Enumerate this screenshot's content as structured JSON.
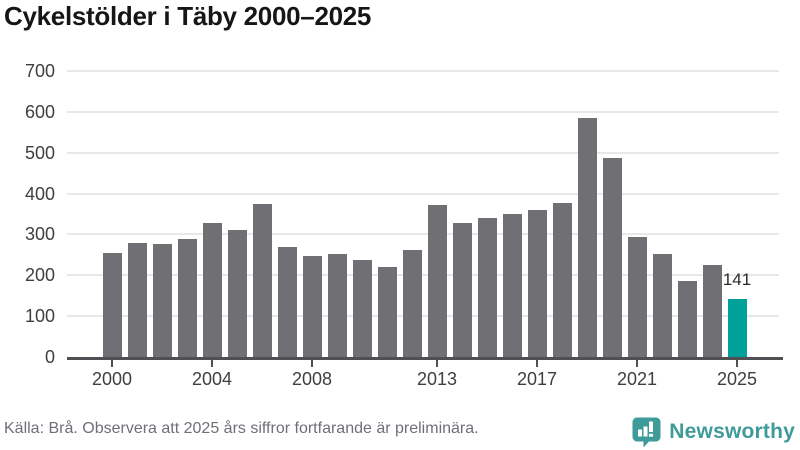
{
  "chart_data": {
    "type": "bar",
    "title": "Cykelstölder i Täby 2000–2025",
    "categories": [
      2000,
      2001,
      2002,
      2003,
      2004,
      2005,
      2006,
      2007,
      2008,
      2009,
      2010,
      2011,
      2012,
      2013,
      2014,
      2015,
      2016,
      2017,
      2018,
      2019,
      2020,
      2021,
      2022,
      2023,
      2024,
      2025
    ],
    "values": [
      254,
      278,
      276,
      290,
      329,
      310,
      374,
      270,
      248,
      252,
      238,
      220,
      262,
      372,
      328,
      341,
      349,
      361,
      378,
      586,
      487,
      294,
      252,
      186,
      224,
      141
    ],
    "xlabel": "",
    "ylabel": "",
    "ylim": [
      0,
      700
    ],
    "yticks": [
      0,
      100,
      200,
      300,
      400,
      500,
      600,
      700
    ],
    "xticks": [
      2000,
      2004,
      2008,
      2013,
      2017,
      2021,
      2025
    ],
    "grid": true,
    "legend": false,
    "highlight_year": 2025,
    "bar_color": "#6F6F74",
    "highlight_color": "#00A19A",
    "annotation": {
      "year": 2025,
      "text": "141"
    }
  },
  "footer": {
    "source_text": "Källa: Brå. Observera att 2025 års siffror fortfarande är preliminära.",
    "brand": "Newsworthy",
    "brand_color": "#3E9B99"
  }
}
